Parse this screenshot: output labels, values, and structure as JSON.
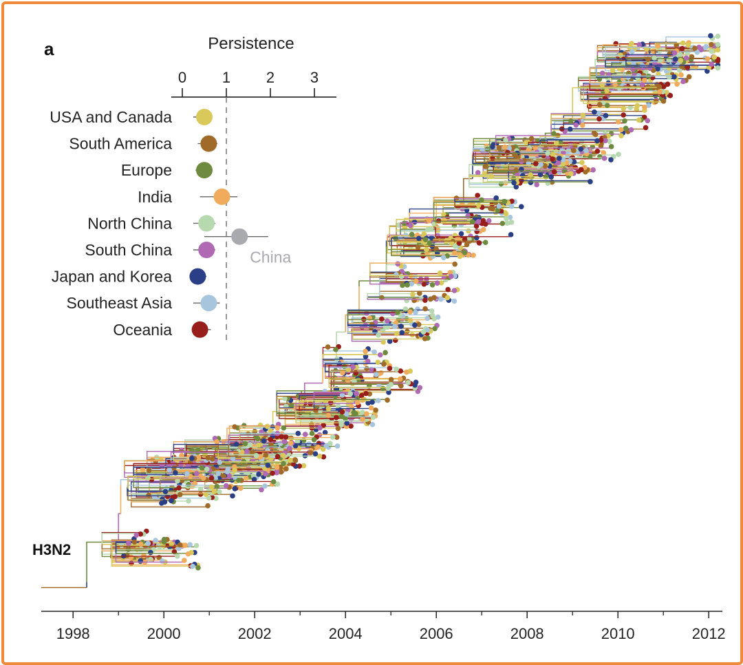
{
  "chart_data": {
    "type": "phylogenetic-tree-with-persistence-plot",
    "panel_letter": "a",
    "subtype": "H3N2",
    "persistence": {
      "title": "Persistence",
      "ticks": [
        0,
        1,
        2,
        3
      ],
      "xlim": [
        -0.25,
        3.5
      ],
      "reference_line": 1,
      "regions": [
        {
          "name": "USA and Canada",
          "value": 0.5,
          "err": [
            0.25,
            0.6
          ],
          "color": "#d9c95a"
        },
        {
          "name": "South America",
          "value": 0.6,
          "err": [
            0.35,
            0.8
          ],
          "color": "#a06a28"
        },
        {
          "name": "Europe",
          "value": 0.5,
          "err": [
            0.3,
            0.6
          ],
          "color": "#6e8a3e"
        },
        {
          "name": "India",
          "value": 0.9,
          "err": [
            0.4,
            1.25
          ],
          "color": "#f0ac5c"
        },
        {
          "name": "North China",
          "value": 0.55,
          "err": [
            0.25,
            0.75
          ],
          "color": "#b7d9b0"
        },
        {
          "name": "South China",
          "value": 0.55,
          "err": [
            0.25,
            0.75
          ],
          "color": "#b06ab4"
        },
        {
          "name": "Japan and Korea",
          "value": 0.35,
          "err": [
            0.2,
            0.55
          ],
          "color": "#2a3f86"
        },
        {
          "name": "Southeast Asia",
          "value": 0.6,
          "err": [
            0.25,
            0.85
          ],
          "color": "#a7c6de"
        },
        {
          "name": "Oceania",
          "value": 0.4,
          "err": [
            0.25,
            0.65
          ],
          "color": "#981e1c"
        }
      ],
      "combined": {
        "name": "China",
        "value": 1.3,
        "err": [
          0.5,
          1.95
        ],
        "color": "#a9a9b0"
      }
    },
    "time_axis": {
      "ticks": [
        1998,
        2000,
        2002,
        2004,
        2006,
        2008,
        2010,
        2012
      ],
      "xlim": [
        1997.3,
        2012.3
      ]
    },
    "trunk_path": [
      {
        "year": 1997.3,
        "v": 0.98
      },
      {
        "year": 1998.3,
        "v": 0.98
      },
      {
        "year": 1998.3,
        "v": 0.97
      },
      {
        "year": 1999.0,
        "v": 0.9
      },
      {
        "year": 1999.05,
        "v": 0.85
      },
      {
        "year": 1999.05,
        "v": 0.8
      },
      {
        "year": 1999.4,
        "v": 0.79
      },
      {
        "year": 2000.1,
        "v": 0.77
      },
      {
        "year": 2001.2,
        "v": 0.755
      },
      {
        "year": 2002.4,
        "v": 0.72
      },
      {
        "year": 2002.4,
        "v": 0.69
      },
      {
        "year": 2003.1,
        "v": 0.67
      },
      {
        "year": 2003.5,
        "v": 0.62
      },
      {
        "year": 2003.8,
        "v": 0.59
      },
      {
        "year": 2004.0,
        "v": 0.53
      },
      {
        "year": 2004.3,
        "v": 0.5
      },
      {
        "year": 2004.3,
        "v": 0.45
      },
      {
        "year": 2004.9,
        "v": 0.44
      },
      {
        "year": 2004.9,
        "v": 0.38
      },
      {
        "year": 2005.3,
        "v": 0.37
      },
      {
        "year": 2006.0,
        "v": 0.33
      },
      {
        "year": 2006.6,
        "v": 0.3
      },
      {
        "year": 2006.8,
        "v": 0.26
      },
      {
        "year": 2007.6,
        "v": 0.22
      },
      {
        "year": 2008.4,
        "v": 0.2
      },
      {
        "year": 2008.6,
        "v": 0.18
      },
      {
        "year": 2009.0,
        "v": 0.16
      },
      {
        "year": 2009.5,
        "v": 0.1
      },
      {
        "year": 2010.7,
        "v": 0.05
      },
      {
        "year": 2011.3,
        "v": 0.02
      }
    ]
  }
}
